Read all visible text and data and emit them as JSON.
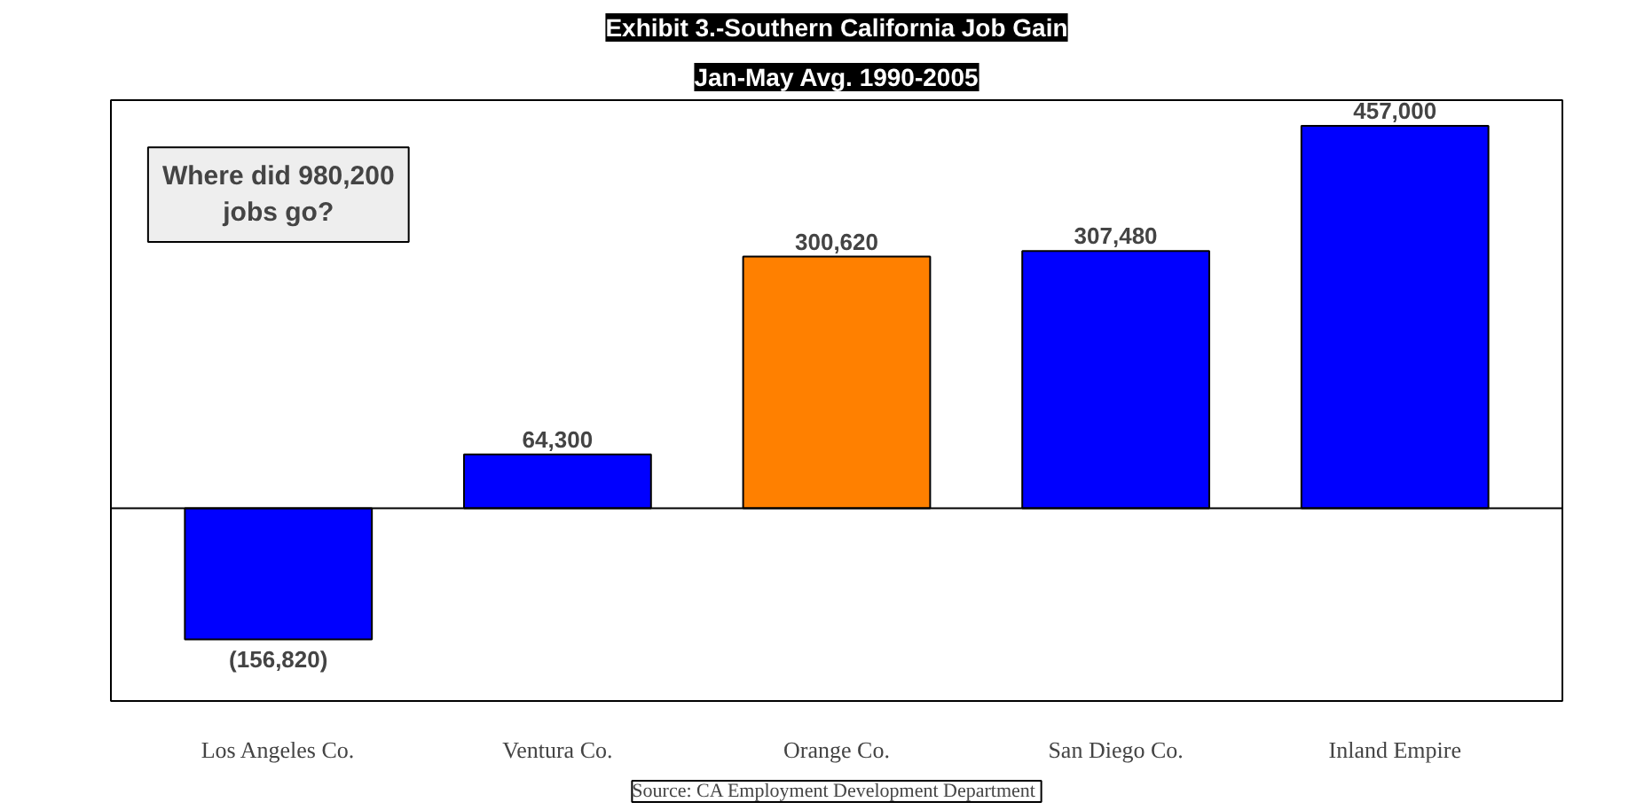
{
  "chart_data": {
    "type": "bar",
    "title": "Exhibit 3.-Southern California Job Gain",
    "subtitle": "Jan-May Avg. 1990-2005",
    "categories": [
      "Los Angeles Co.",
      "Ventura Co.",
      "Orange Co.",
      "San Diego Co.",
      "Inland Empire"
    ],
    "values": [
      -156820,
      64300,
      300620,
      307480,
      457000
    ],
    "colors": [
      "#0000ff",
      "#0000ff",
      "#ff8000",
      "#0000ff",
      "#0000ff"
    ],
    "value_labels": [
      "(156,820)",
      "64,300",
      "300,620",
      "307,480",
      "457,000"
    ],
    "annotations": [
      "Where did 980,200\njobs go?",
      "Source:  CA Employment Development Department"
    ],
    "grid": false
  }
}
